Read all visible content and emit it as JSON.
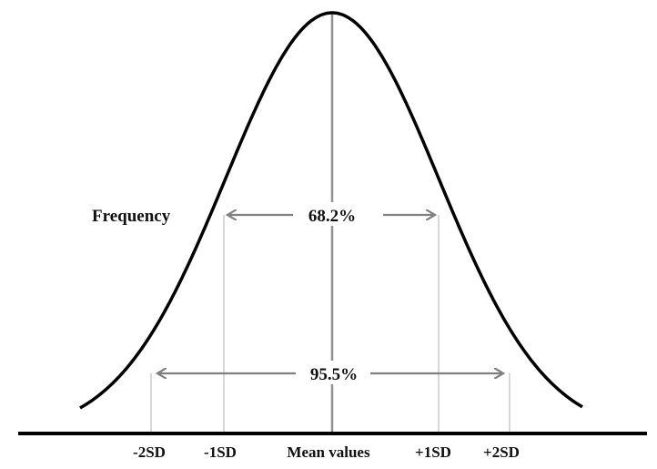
{
  "diagram": {
    "axis_label": "Frequency",
    "inner_range_label": "68.2%",
    "outer_range_label": "95.5%",
    "ticks": [
      "-2SD",
      "-1SD",
      "Mean values",
      "+1SD",
      "+2SD"
    ]
  },
  "colors": {
    "curve": "#000000",
    "arrow": "#808080",
    "guide": "#b0b0b0",
    "mean_line": "#909090",
    "text": "#111111"
  }
}
